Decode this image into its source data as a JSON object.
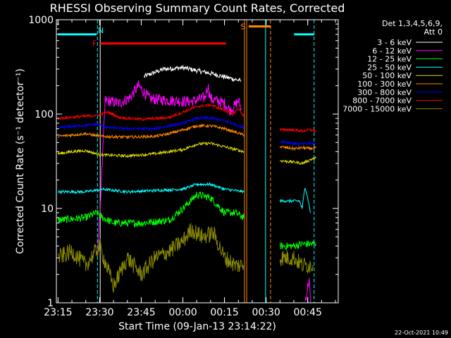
{
  "chart_data": {
    "type": "line",
    "title": "RHESSI Observing Summary Count Rates, Corrected",
    "xlabel": "Start Time (09-Jan-13 23:14:22)",
    "ylabel": "Corrected Count Rate (s⁻¹ detector⁻¹)",
    "yscale": "log",
    "ylim": [
      1,
      1000
    ],
    "xlim_minutes_from_2315": [
      -0.6,
      101
    ],
    "x_ticks": [
      {
        "label": "23:15",
        "min": 0
      },
      {
        "label": "23:30",
        "min": 15
      },
      {
        "label": "23:45",
        "min": 30
      },
      {
        "label": "00:00",
        "min": 45
      },
      {
        "label": "00:15",
        "min": 60
      },
      {
        "label": "00:30",
        "min": 75
      },
      {
        "label": "00:45",
        "min": 90
      }
    ],
    "y_ticks": [
      1,
      10,
      100,
      1000
    ],
    "y_tick_labels": [
      "1",
      "10",
      "100",
      "1000"
    ],
    "legend_header": [
      "Det 1,3,4,5,6,9,",
      "Att 0"
    ],
    "legend_position": "right",
    "series": [
      {
        "name": "3 - 6 keV",
        "color": "#ffffff",
        "segments": [
          [
            [
              31,
              250
            ],
            [
              38,
              300
            ],
            [
              45,
              310
            ],
            [
              55,
              270
            ],
            [
              62,
              240
            ],
            [
              66,
              225
            ]
          ]
        ]
      },
      {
        "name": "6 - 12 keV",
        "color": "#ff00ff",
        "segments": [
          [
            [
              14,
              3
            ],
            [
              15,
              8
            ],
            [
              15.5,
              15
            ],
            [
              17,
              140
            ],
            [
              22,
              130
            ],
            [
              26,
              150
            ],
            [
              29,
              200
            ],
            [
              33,
              145
            ],
            [
              40,
              140
            ],
            [
              48,
              135
            ],
            [
              53,
              150
            ],
            [
              54,
              200
            ],
            [
              55,
              145
            ],
            [
              60,
              130
            ],
            [
              62,
              110
            ],
            [
              64,
              125
            ],
            [
              65,
              140
            ],
            [
              66,
              115
            ]
          ],
          [
            [
              89,
              1
            ],
            [
              90.5,
              1.8
            ],
            [
              91,
              1
            ]
          ]
        ]
      },
      {
        "name": "12 - 25 keV",
        "color": "#00ff00",
        "segments": [
          [
            [
              0,
              7.5
            ],
            [
              10,
              8
            ],
            [
              14,
              9
            ],
            [
              16,
              8
            ],
            [
              20,
              7
            ],
            [
              30,
              7
            ],
            [
              40,
              7.5
            ],
            [
              45,
              10
            ],
            [
              50,
              14
            ],
            [
              55,
              13
            ],
            [
              60,
              9
            ],
            [
              64,
              9
            ],
            [
              67,
              8
            ]
          ],
          [
            [
              80,
              4
            ],
            [
              85,
              4
            ],
            [
              88,
              4.2
            ],
            [
              93,
              4.2
            ]
          ]
        ]
      },
      {
        "name": "25 - 50 keV",
        "color": "#00ffff",
        "segments": [
          [
            [
              0,
              15
            ],
            [
              10,
              15
            ],
            [
              16,
              16
            ],
            [
              25,
              15
            ],
            [
              35,
              15.5
            ],
            [
              45,
              16
            ],
            [
              50,
              18
            ],
            [
              55,
              18
            ],
            [
              60,
              16
            ],
            [
              67,
              15
            ]
          ],
          [
            [
              80,
              12
            ],
            [
              87,
              12
            ],
            [
              88,
              10
            ],
            [
              89,
              17
            ],
            [
              90,
              13
            ],
            [
              91,
              9
            ]
          ]
        ]
      },
      {
        "name": "50 - 100 keV",
        "color": "#dddd00",
        "segments": [
          [
            [
              0,
              38
            ],
            [
              5,
              40
            ],
            [
              10,
              41
            ],
            [
              15,
              37
            ],
            [
              25,
              36
            ],
            [
              35,
              38
            ],
            [
              45,
              42
            ],
            [
              50,
              48
            ],
            [
              55,
              49
            ],
            [
              60,
              45
            ],
            [
              67,
              40
            ]
          ],
          [
            [
              80,
              32
            ],
            [
              85,
              31
            ],
            [
              88,
              30
            ],
            [
              91,
              33
            ],
            [
              93,
              34
            ]
          ]
        ]
      },
      {
        "name": "100 - 300 keV",
        "color": "#ff8800",
        "segments": [
          [
            [
              0,
              58
            ],
            [
              5,
              60
            ],
            [
              10,
              62
            ],
            [
              15,
              58
            ],
            [
              25,
              57
            ],
            [
              35,
              58
            ],
            [
              40,
              62
            ],
            [
              45,
              68
            ],
            [
              50,
              75
            ],
            [
              55,
              75
            ],
            [
              60,
              70
            ],
            [
              67,
              60
            ]
          ],
          [
            [
              80,
              45
            ],
            [
              85,
              43
            ],
            [
              88,
              44
            ],
            [
              91,
              43
            ],
            [
              93,
              44
            ]
          ]
        ]
      },
      {
        "name": "300 - 800 keV",
        "color": "#0000ff",
        "segments": [
          [
            [
              0,
              72
            ],
            [
              10,
              76
            ],
            [
              14,
              78
            ],
            [
              18,
              72
            ],
            [
              25,
              70
            ],
            [
              35,
              70
            ],
            [
              45,
              80
            ],
            [
              50,
              90
            ],
            [
              55,
              91
            ],
            [
              60,
              85
            ],
            [
              67,
              72
            ]
          ],
          [
            [
              80,
              52
            ],
            [
              85,
              49
            ],
            [
              88,
              48
            ],
            [
              91,
              49
            ],
            [
              93,
              48
            ]
          ]
        ]
      },
      {
        "name": "800 - 7000 keV",
        "color": "#ff0000",
        "segments": [
          [
            [
              0,
              90
            ],
            [
              10,
              95
            ],
            [
              14,
              97
            ],
            [
              18,
              105
            ],
            [
              22,
              92
            ],
            [
              30,
              88
            ],
            [
              40,
              92
            ],
            [
              45,
              105
            ],
            [
              50,
              120
            ],
            [
              55,
              125
            ],
            [
              60,
              110
            ],
            [
              63,
              100
            ],
            [
              65,
              115
            ],
            [
              67,
              95
            ]
          ],
          [
            [
              80,
              68
            ],
            [
              85,
              68
            ],
            [
              88,
              66
            ],
            [
              91,
              68
            ],
            [
              93,
              66
            ]
          ]
        ]
      },
      {
        "name": "7000 - 15000 keV",
        "color": "#888800",
        "segments": [
          [
            [
              0,
              3
            ],
            [
              5,
              3.5
            ],
            [
              10,
              2.5
            ],
            [
              15,
              4
            ],
            [
              20,
              1.5
            ],
            [
              25,
              3
            ],
            [
              30,
              2
            ],
            [
              35,
              3
            ],
            [
              40,
              3.5
            ],
            [
              45,
              4.5
            ],
            [
              48,
              6
            ],
            [
              52,
              5
            ],
            [
              56,
              5.5
            ],
            [
              60,
              3
            ],
            [
              64,
              2.5
            ],
            [
              67,
              2.5
            ]
          ],
          [
            [
              80,
              3
            ],
            [
              85,
              3
            ],
            [
              88,
              2.5
            ],
            [
              92,
              2.5
            ]
          ]
        ]
      }
    ],
    "annotations": [
      {
        "label": "N",
        "color": "#00ffff",
        "segments": [
          [
            0,
            13.9
          ],
          [
            85.1,
            92.3
          ]
        ],
        "level": 700
      },
      {
        "label": "F",
        "color": "#ff0000",
        "segments": [
          [
            15.2,
            60.5
          ]
        ],
        "level": 560
      },
      {
        "label": "S",
        "color": "#ff8800",
        "segments": [
          [
            68.7,
            76.6
          ]
        ],
        "level": 850
      }
    ],
    "vertical_lines": [
      {
        "min": 15.2,
        "color": "#ffffff",
        "style": "solid"
      },
      {
        "min": 14.2,
        "color": "#00ffff",
        "style": "dash"
      },
      {
        "min": 92.3,
        "color": "#00ffff",
        "style": "dash"
      },
      {
        "min": 67.2,
        "color": "#ff8800",
        "style": "solid"
      },
      {
        "min": 68.0,
        "color": "#ff8800",
        "style": "solid"
      },
      {
        "min": 76.6,
        "color": "#ff8800",
        "style": "dash"
      },
      {
        "min": 74.8,
        "color": "#00ffff",
        "style": "solid"
      }
    ],
    "footer_date": "22-Oct-2021 10:49"
  }
}
